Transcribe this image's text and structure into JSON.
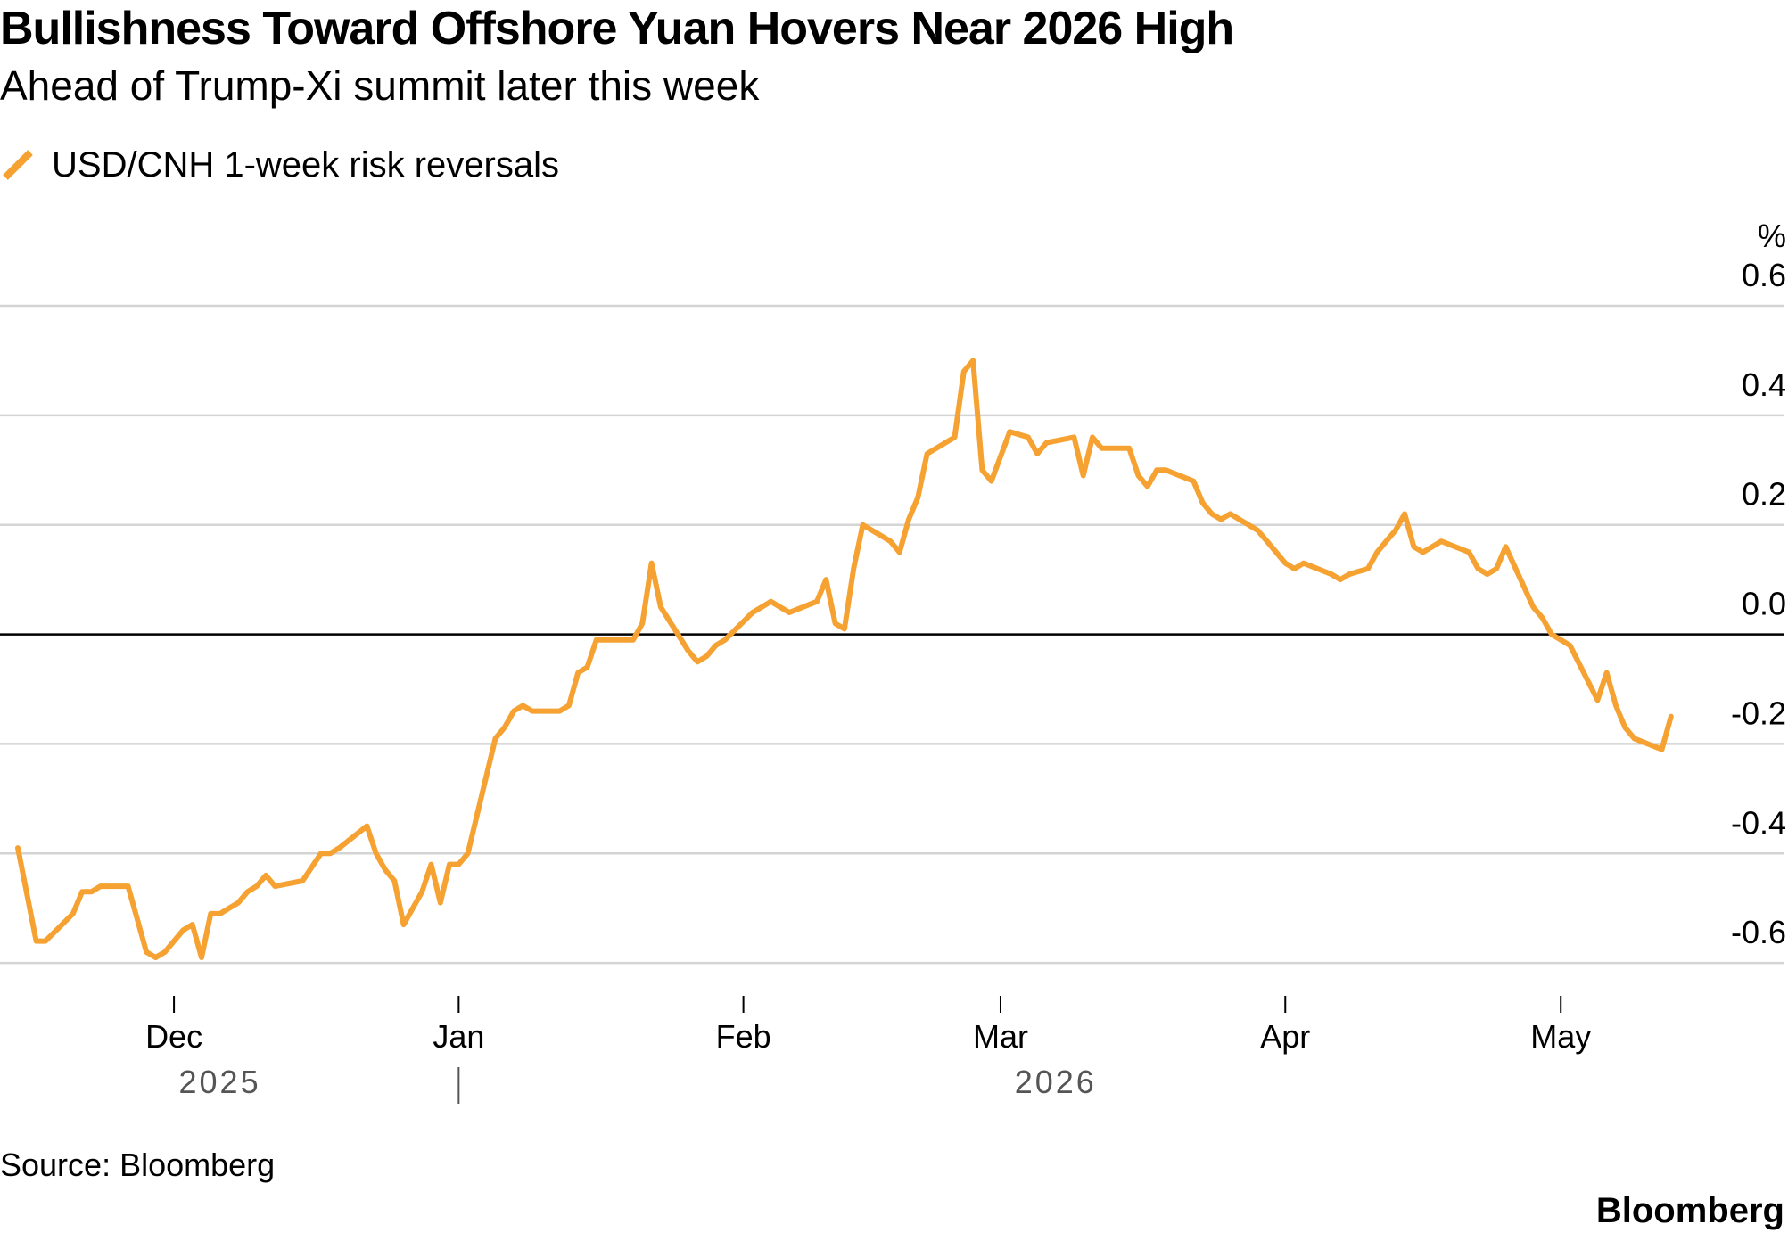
{
  "title": "Bullishness Toward Offshore Yuan Hovers Near 2026 High",
  "subtitle": "Ahead of Trump-Xi summit later this week",
  "source": "Source: Bloomberg",
  "brand": "Bloomberg",
  "colors": {
    "series": "#f5a232",
    "grid": "#d4d4d4",
    "zero_line": "#000000",
    "axis_text": "#000000",
    "year_text": "#555555"
  },
  "chart_data": {
    "type": "line",
    "title": "Bullishness Toward Offshore Yuan Hovers Near 2026 High",
    "subtitle": "Ahead of Trump-Xi summit later this week",
    "unit": "%",
    "ylim": [
      -0.66,
      0.6
    ],
    "yticks": [
      0.6,
      0.4,
      0.2,
      0.0,
      -0.2,
      -0.4,
      -0.6
    ],
    "ytick_labels": [
      "0.6",
      "0.4",
      "0.2",
      "0.0",
      "-0.2",
      "-0.4",
      "-0.6"
    ],
    "xlim": [
      "2025-11-14",
      "2026-05-17"
    ],
    "xticks": [
      {
        "date": "2025-12-01",
        "label": "Dec"
      },
      {
        "date": "2026-01-01",
        "label": "Jan"
      },
      {
        "date": "2026-02-01",
        "label": "Feb"
      },
      {
        "date": "2026-03-01",
        "label": "Mar"
      },
      {
        "date": "2026-04-01",
        "label": "Apr"
      },
      {
        "date": "2026-05-01",
        "label": "May"
      }
    ],
    "year_labels": [
      {
        "label": "2025",
        "date": "2025-12-06"
      },
      {
        "label": "2026",
        "date": "2026-03-07"
      }
    ],
    "year_divider": "2026-01-01",
    "grid": true,
    "legend": "top-left",
    "series": [
      {
        "name": "USD/CNH 1-week risk reversals",
        "color": "#f5a232",
        "points": [
          [
            "2025-11-14",
            -0.39
          ],
          [
            "2025-11-16",
            -0.56
          ],
          [
            "2025-11-17",
            -0.56
          ],
          [
            "2025-11-20",
            -0.51
          ],
          [
            "2025-11-21",
            -0.47
          ],
          [
            "2025-11-22",
            -0.47
          ],
          [
            "2025-11-23",
            -0.46
          ],
          [
            "2025-11-24",
            -0.46
          ],
          [
            "2025-11-26",
            -0.46
          ],
          [
            "2025-11-27",
            -0.52
          ],
          [
            "2025-11-28",
            -0.58
          ],
          [
            "2025-11-29",
            -0.59
          ],
          [
            "2025-11-30",
            -0.58
          ],
          [
            "2025-12-02",
            -0.54
          ],
          [
            "2025-12-03",
            -0.53
          ],
          [
            "2025-12-04",
            -0.59
          ],
          [
            "2025-12-05",
            -0.51
          ],
          [
            "2025-12-06",
            -0.51
          ],
          [
            "2025-12-07",
            -0.5
          ],
          [
            "2025-12-08",
            -0.49
          ],
          [
            "2025-12-09",
            -0.47
          ],
          [
            "2025-12-10",
            -0.46
          ],
          [
            "2025-12-11",
            -0.44
          ],
          [
            "2025-12-12",
            -0.46
          ],
          [
            "2025-12-15",
            -0.45
          ],
          [
            "2025-12-17",
            -0.4
          ],
          [
            "2025-12-18",
            -0.4
          ],
          [
            "2025-12-19",
            -0.39
          ],
          [
            "2025-12-22",
            -0.35
          ],
          [
            "2025-12-23",
            -0.4
          ],
          [
            "2025-12-24",
            -0.43
          ],
          [
            "2025-12-25",
            -0.45
          ],
          [
            "2025-12-26",
            -0.53
          ],
          [
            "2025-12-28",
            -0.47
          ],
          [
            "2025-12-29",
            -0.42
          ],
          [
            "2025-12-30",
            -0.49
          ],
          [
            "2025-12-31",
            -0.42
          ],
          [
            "2026-01-01",
            -0.42
          ],
          [
            "2026-01-02",
            -0.4
          ],
          [
            "2026-01-05",
            -0.19
          ],
          [
            "2026-01-06",
            -0.17
          ],
          [
            "2026-01-07",
            -0.14
          ],
          [
            "2026-01-08",
            -0.13
          ],
          [
            "2026-01-09",
            -0.14
          ],
          [
            "2026-01-12",
            -0.14
          ],
          [
            "2026-01-13",
            -0.13
          ],
          [
            "2026-01-14",
            -0.07
          ],
          [
            "2026-01-15",
            -0.06
          ],
          [
            "2026-01-16",
            -0.01
          ],
          [
            "2026-01-19",
            -0.01
          ],
          [
            "2026-01-20",
            -0.01
          ],
          [
            "2026-01-21",
            0.02
          ],
          [
            "2026-01-22",
            0.13
          ],
          [
            "2026-01-23",
            0.05
          ],
          [
            "2026-01-26",
            -0.03
          ],
          [
            "2026-01-27",
            -0.05
          ],
          [
            "2026-01-28",
            -0.04
          ],
          [
            "2026-01-29",
            -0.02
          ],
          [
            "2026-01-30",
            -0.01
          ],
          [
            "2026-02-02",
            0.04
          ],
          [
            "2026-02-03",
            0.05
          ],
          [
            "2026-02-04",
            0.06
          ],
          [
            "2026-02-05",
            0.05
          ],
          [
            "2026-02-06",
            0.04
          ],
          [
            "2026-02-09",
            0.06
          ],
          [
            "2026-02-10",
            0.1
          ],
          [
            "2026-02-11",
            0.02
          ],
          [
            "2026-02-12",
            0.01
          ],
          [
            "2026-02-13",
            0.12
          ],
          [
            "2026-02-14",
            0.2
          ],
          [
            "2026-02-17",
            0.17
          ],
          [
            "2026-02-18",
            0.15
          ],
          [
            "2026-02-19",
            0.21
          ],
          [
            "2026-02-20",
            0.25
          ],
          [
            "2026-02-21",
            0.33
          ],
          [
            "2026-02-24",
            0.36
          ],
          [
            "2026-02-25",
            0.48
          ],
          [
            "2026-02-26",
            0.5
          ],
          [
            "2026-02-27",
            0.3
          ],
          [
            "2026-02-28",
            0.28
          ],
          [
            "2026-03-02",
            0.37
          ],
          [
            "2026-03-04",
            0.36
          ],
          [
            "2026-03-05",
            0.33
          ],
          [
            "2026-03-06",
            0.35
          ],
          [
            "2026-03-09",
            0.36
          ],
          [
            "2026-03-10",
            0.29
          ],
          [
            "2026-03-11",
            0.36
          ],
          [
            "2026-03-12",
            0.34
          ],
          [
            "2026-03-15",
            0.34
          ],
          [
            "2026-03-16",
            0.29
          ],
          [
            "2026-03-17",
            0.27
          ],
          [
            "2026-03-18",
            0.3
          ],
          [
            "2026-03-19",
            0.3
          ],
          [
            "2026-03-22",
            0.28
          ],
          [
            "2026-03-23",
            0.24
          ],
          [
            "2026-03-24",
            0.22
          ],
          [
            "2026-03-25",
            0.21
          ],
          [
            "2026-03-26",
            0.22
          ],
          [
            "2026-03-29",
            0.19
          ],
          [
            "2026-03-30",
            0.17
          ],
          [
            "2026-04-01",
            0.13
          ],
          [
            "2026-04-02",
            0.12
          ],
          [
            "2026-04-03",
            0.13
          ],
          [
            "2026-04-06",
            0.11
          ],
          [
            "2026-04-07",
            0.1
          ],
          [
            "2026-04-08",
            0.11
          ],
          [
            "2026-04-10",
            0.12
          ],
          [
            "2026-04-11",
            0.15
          ],
          [
            "2026-04-12",
            0.17
          ],
          [
            "2026-04-13",
            0.19
          ],
          [
            "2026-04-14",
            0.22
          ],
          [
            "2026-04-15",
            0.16
          ],
          [
            "2026-04-16",
            0.15
          ],
          [
            "2026-04-18",
            0.17
          ],
          [
            "2026-04-21",
            0.15
          ],
          [
            "2026-04-22",
            0.12
          ],
          [
            "2026-04-23",
            0.11
          ],
          [
            "2026-04-24",
            0.12
          ],
          [
            "2026-04-25",
            0.16
          ],
          [
            "2026-04-28",
            0.05
          ],
          [
            "2026-04-29",
            0.03
          ],
          [
            "2026-04-30",
            0.0
          ],
          [
            "2026-05-01",
            -0.01
          ],
          [
            "2026-05-02",
            -0.02
          ],
          [
            "2026-05-05",
            -0.12
          ],
          [
            "2026-05-06",
            -0.07
          ],
          [
            "2026-05-07",
            -0.13
          ],
          [
            "2026-05-08",
            -0.17
          ],
          [
            "2026-05-09",
            -0.19
          ],
          [
            "2026-05-12",
            -0.21
          ],
          [
            "2026-05-13",
            -0.15
          ]
        ]
      }
    ]
  }
}
